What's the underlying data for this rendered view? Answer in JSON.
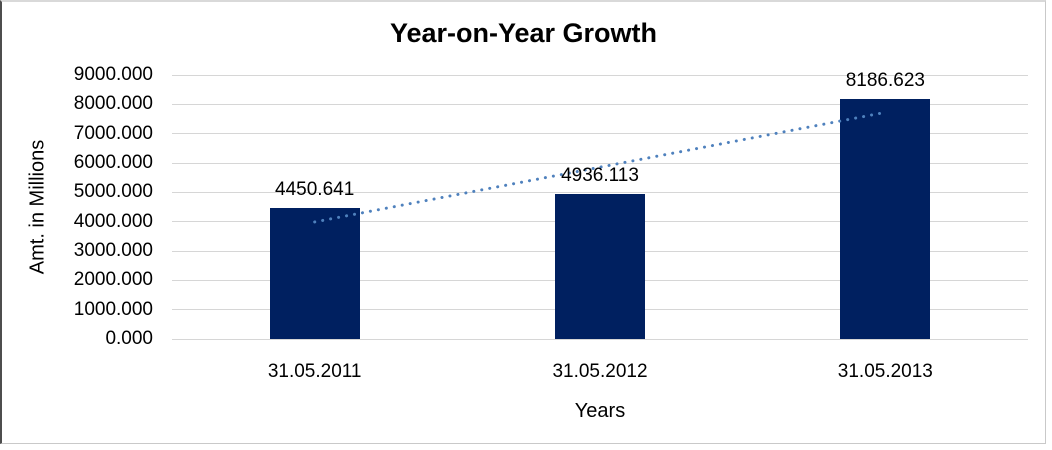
{
  "chart_data": {
    "type": "bar",
    "title": "Year-on-Year Growth",
    "xlabel": "Years",
    "ylabel": "Amt. in Millions",
    "categories": [
      "31.05.2011",
      "31.05.2012",
      "31.05.2013"
    ],
    "values": [
      4450.641,
      4936.113,
      8186.623
    ],
    "data_labels": [
      "4450.641",
      "4936.113",
      "8186.623"
    ],
    "ylim": [
      0,
      9000
    ],
    "y_tick_labels": [
      "9000.000",
      "8000.000",
      "7000.000",
      "6000.000",
      "5000.000",
      "4000.000",
      "3000.000",
      "2000.000",
      "1000.000",
      "0.000"
    ],
    "grid": true,
    "legend": "none",
    "colors": {
      "bar": "#002060",
      "trendline": "#4f81bd",
      "gridline": "#d6d6d6",
      "text": "#000000"
    },
    "trendline": {
      "type": "linear",
      "style": "dotted",
      "start_value": 3990,
      "end_value": 7726
    }
  }
}
